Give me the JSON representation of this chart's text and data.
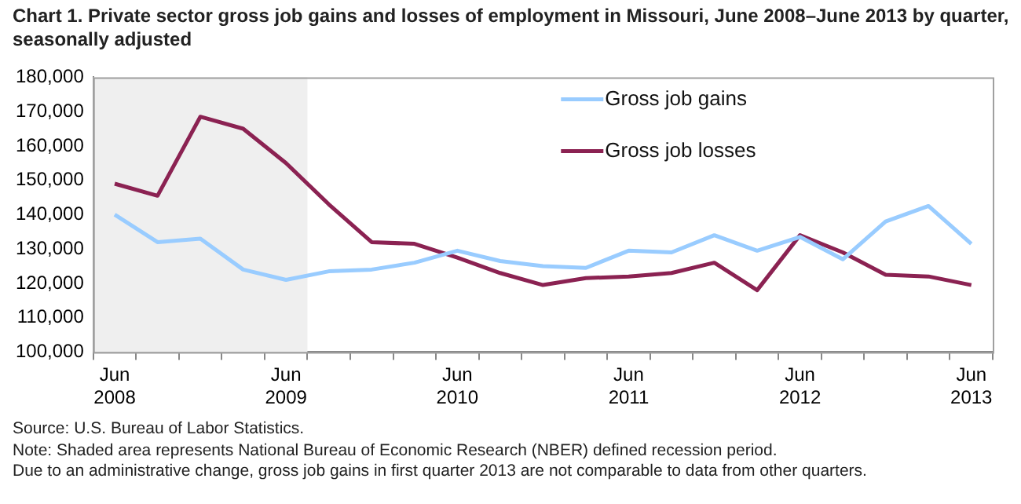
{
  "chart_data": {
    "type": "line",
    "title": "Chart 1. Private sector gross job gains and losses of employment in Missouri, June 2008–June 2013 by quarter, seasonally adjusted",
    "categories": [
      "Jun 2008",
      null,
      null,
      null,
      "Jun 2009",
      null,
      null,
      null,
      "Jun 2010",
      null,
      null,
      null,
      "Jun 2011",
      null,
      null,
      null,
      "Jun 2012",
      null,
      null,
      null,
      "Jun 2013"
    ],
    "series": [
      {
        "name": "Gross job gains",
        "color": "#99ccff",
        "values": [
          140000,
          132000,
          133000,
          124000,
          121000,
          123500,
          124000,
          126000,
          129500,
          126500,
          125000,
          124500,
          129500,
          129000,
          134000,
          129500,
          133500,
          127000,
          138000,
          142500,
          131500
        ]
      },
      {
        "name": "Gross job losses",
        "color": "#8b2252",
        "values": [
          149000,
          145500,
          168500,
          165000,
          155000,
          143000,
          132000,
          131500,
          127500,
          123000,
          119500,
          121500,
          122000,
          123000,
          126000,
          118000,
          134000,
          129000,
          122500,
          122000,
          119500
        ]
      }
    ],
    "ylim": [
      100000,
      180000
    ],
    "yticks": [
      {
        "value": 100000,
        "label": "100,000"
      },
      {
        "value": 110000,
        "label": "110,000"
      },
      {
        "value": 120000,
        "label": "120,000"
      },
      {
        "value": 130000,
        "label": "130,000"
      },
      {
        "value": 140000,
        "label": "140,000"
      },
      {
        "value": 150000,
        "label": "150,000"
      },
      {
        "value": 160000,
        "label": "160,000"
      },
      {
        "value": 170000,
        "label": "170,000"
      },
      {
        "value": 180000,
        "label": "180,000"
      }
    ],
    "bands": [
      {
        "axis": "x",
        "from": "Jun 2008",
        "to": "Jun 2009",
        "color": "#efefef"
      }
    ],
    "grid": false,
    "legend": "top right",
    "marker": "none",
    "line_style": "solid",
    "annotations": [
      "Source: U.S. Bureau of Labor Statistics.",
      "Note: Shaded area represents National Bureau of Economic Research (NBER) defined recession period.",
      "Due to an administrative change, gross job gains in first quarter 2013 are not comparable to data from other quarters."
    ]
  }
}
